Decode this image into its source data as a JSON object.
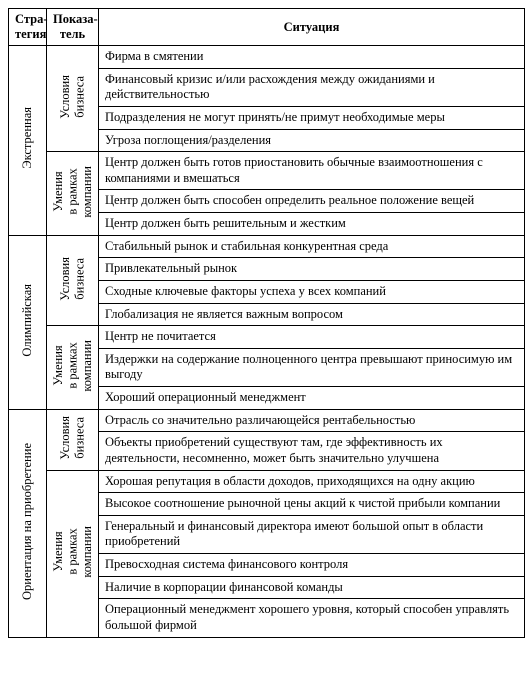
{
  "columns": {
    "strategy": "Стра-\nтегия",
    "indicator": "Показа-\nтель",
    "situation": "Ситуация"
  },
  "widths": {
    "strategy": 38,
    "indicator": 52,
    "situation": 426
  },
  "groups": [
    {
      "strategy": "Экстренная",
      "blocks": [
        {
          "indicator": "Условия\nбизнеса",
          "rows": [
            "Фирма в смятении",
            "Финансовый кризис и/или расхождения между ожиданиями и действительностью",
            "Подразделения не могут принять/не примут необходимые меры",
            "Угроза поглощения/разделения"
          ]
        },
        {
          "indicator": "Умения\nв рамках\nкомпании",
          "rows": [
            "Центр должен быть готов приостановить обычные взаимоотношения с компаниями и вмешаться",
            "Центр должен быть способен определить реальное положение вещей",
            "Центр должен быть решительным и жестким"
          ]
        }
      ]
    },
    {
      "strategy": "Олимпийская",
      "blocks": [
        {
          "indicator": "Условия\nбизнеса",
          "rows": [
            "Стабильный рынок и стабильная конкурентная среда",
            "Привлекательный рынок",
            "Сходные ключевые факторы успеха у всех компаний",
            "Глобализация не является важным вопросом"
          ]
        },
        {
          "indicator": "Умения\nв рамках\nкомпании",
          "rows": [
            "Центр не почитается",
            "Издержки на содержание полноценного центра превышают приносимую им выгоду",
            "Хороший операционный менеджмент"
          ]
        }
      ]
    },
    {
      "strategy": "Ориентация на приобретение",
      "blocks": [
        {
          "indicator": "Условия\nбизнеса",
          "rows": [
            "Отрасль со значительно различающейся рентабельностью",
            "Объекты приобретений существуют там, где эффективность их деятельности, несомненно, может быть значительно улучшена"
          ]
        },
        {
          "indicator": "Умения\nв рамках\nкомпании",
          "rows": [
            "Хорошая репутация в области доходов, приходящихся на одну акцию",
            "Высокое соотношение рыночной цены акций к чистой прибыли компании",
            "Генеральный и финансовый директора имеют большой опыт в области приобретений",
            "Превосходная система финансового контроля",
            "Наличие в корпорации финансовой команды",
            "Операционный менеджмент хорошего уровня, который способен управлять большой фирмой"
          ]
        }
      ]
    }
  ]
}
